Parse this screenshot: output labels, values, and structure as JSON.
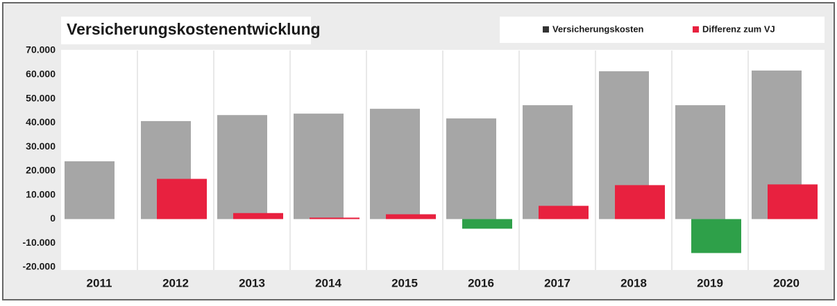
{
  "chart_data": {
    "type": "bar",
    "title": "Versicherungskostenentwicklung",
    "categories": [
      "2011",
      "2012",
      "2013",
      "2014",
      "2015",
      "2016",
      "2017",
      "2018",
      "2019",
      "2020"
    ],
    "series": [
      {
        "name": "Versicherungskosten",
        "color": "#a6a6a6",
        "values": [
          24000,
          40700,
          43200,
          43800,
          45800,
          41800,
          47300,
          61400,
          47300,
          61700
        ]
      },
      {
        "name": "Differenz zum VJ",
        "color": "#e8213f",
        "negative_color": "#2ea049",
        "values": [
          null,
          16700,
          2500,
          600,
          2000,
          -4000,
          5500,
          14100,
          -14100,
          14400
        ]
      }
    ],
    "ylim": [
      -20000,
      70000
    ],
    "yticks": [
      {
        "value": -20000,
        "label": "-20.000"
      },
      {
        "value": -10000,
        "label": "-10.000"
      },
      0,
      {
        "value": 10000,
        "label": "10.000"
      },
      {
        "value": 20000,
        "label": "20.000"
      },
      {
        "value": 30000,
        "label": "30.000"
      },
      {
        "value": 40000,
        "label": "40.000"
      },
      {
        "value": 50000,
        "label": "50.000"
      },
      {
        "value": 60000,
        "label": "60.000"
      },
      {
        "value": 70000,
        "label": "70.000"
      }
    ],
    "grid": false,
    "legend": "top-right"
  }
}
